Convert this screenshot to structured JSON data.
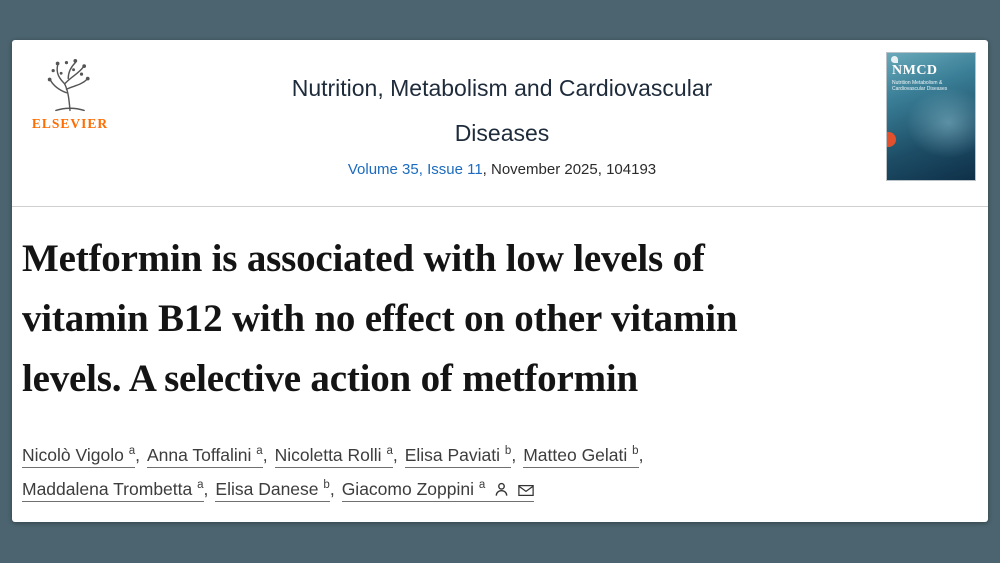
{
  "page": {
    "colors": {
      "background": "#4b646f",
      "link_blue": "#1c6bbf",
      "elsevier_orange": "#ff6c00",
      "cover_teal": "#2a6c85",
      "badge_orange": "#e2512c"
    }
  },
  "journal": {
    "publisher_wordmark": "ELSEVIER",
    "title_lines": [
      "Nutrition, Metabolism and Cardiovascular",
      "Diseases"
    ],
    "issue_link": "Volume 35, Issue 11",
    "issue_meta_rest": ", November 2025, 104193",
    "cover": {
      "abbr": "NMCD",
      "subtitle_lines": [
        "Nutrition Metabolism &",
        "Cardiovascular Diseases"
      ]
    }
  },
  "article": {
    "title_lines": [
      "Metformin is associated with low levels of",
      "vitamin B12 with no effect on other vitamin",
      "levels. A selective action of metformin"
    ],
    "author_lines": [
      [
        {
          "name": "Nicolò Vigolo",
          "affil": "a"
        },
        {
          "name": "Anna Toffalini",
          "affil": "a"
        },
        {
          "name": "Nicoletta Rolli",
          "affil": "a"
        },
        {
          "name": "Elisa Paviati",
          "affil": "b"
        },
        {
          "name": "Matteo Gelati",
          "affil": "b"
        }
      ],
      [
        {
          "name": "Maddalena Trombetta",
          "affil": "a"
        },
        {
          "name": "Elisa Danese",
          "affil": "b"
        },
        {
          "name": "Giacomo Zoppini",
          "affil": "a",
          "corresponding": true
        }
      ]
    ],
    "icons": {
      "author_profile": "person-icon",
      "corresponding_email": "envelope-icon"
    }
  }
}
